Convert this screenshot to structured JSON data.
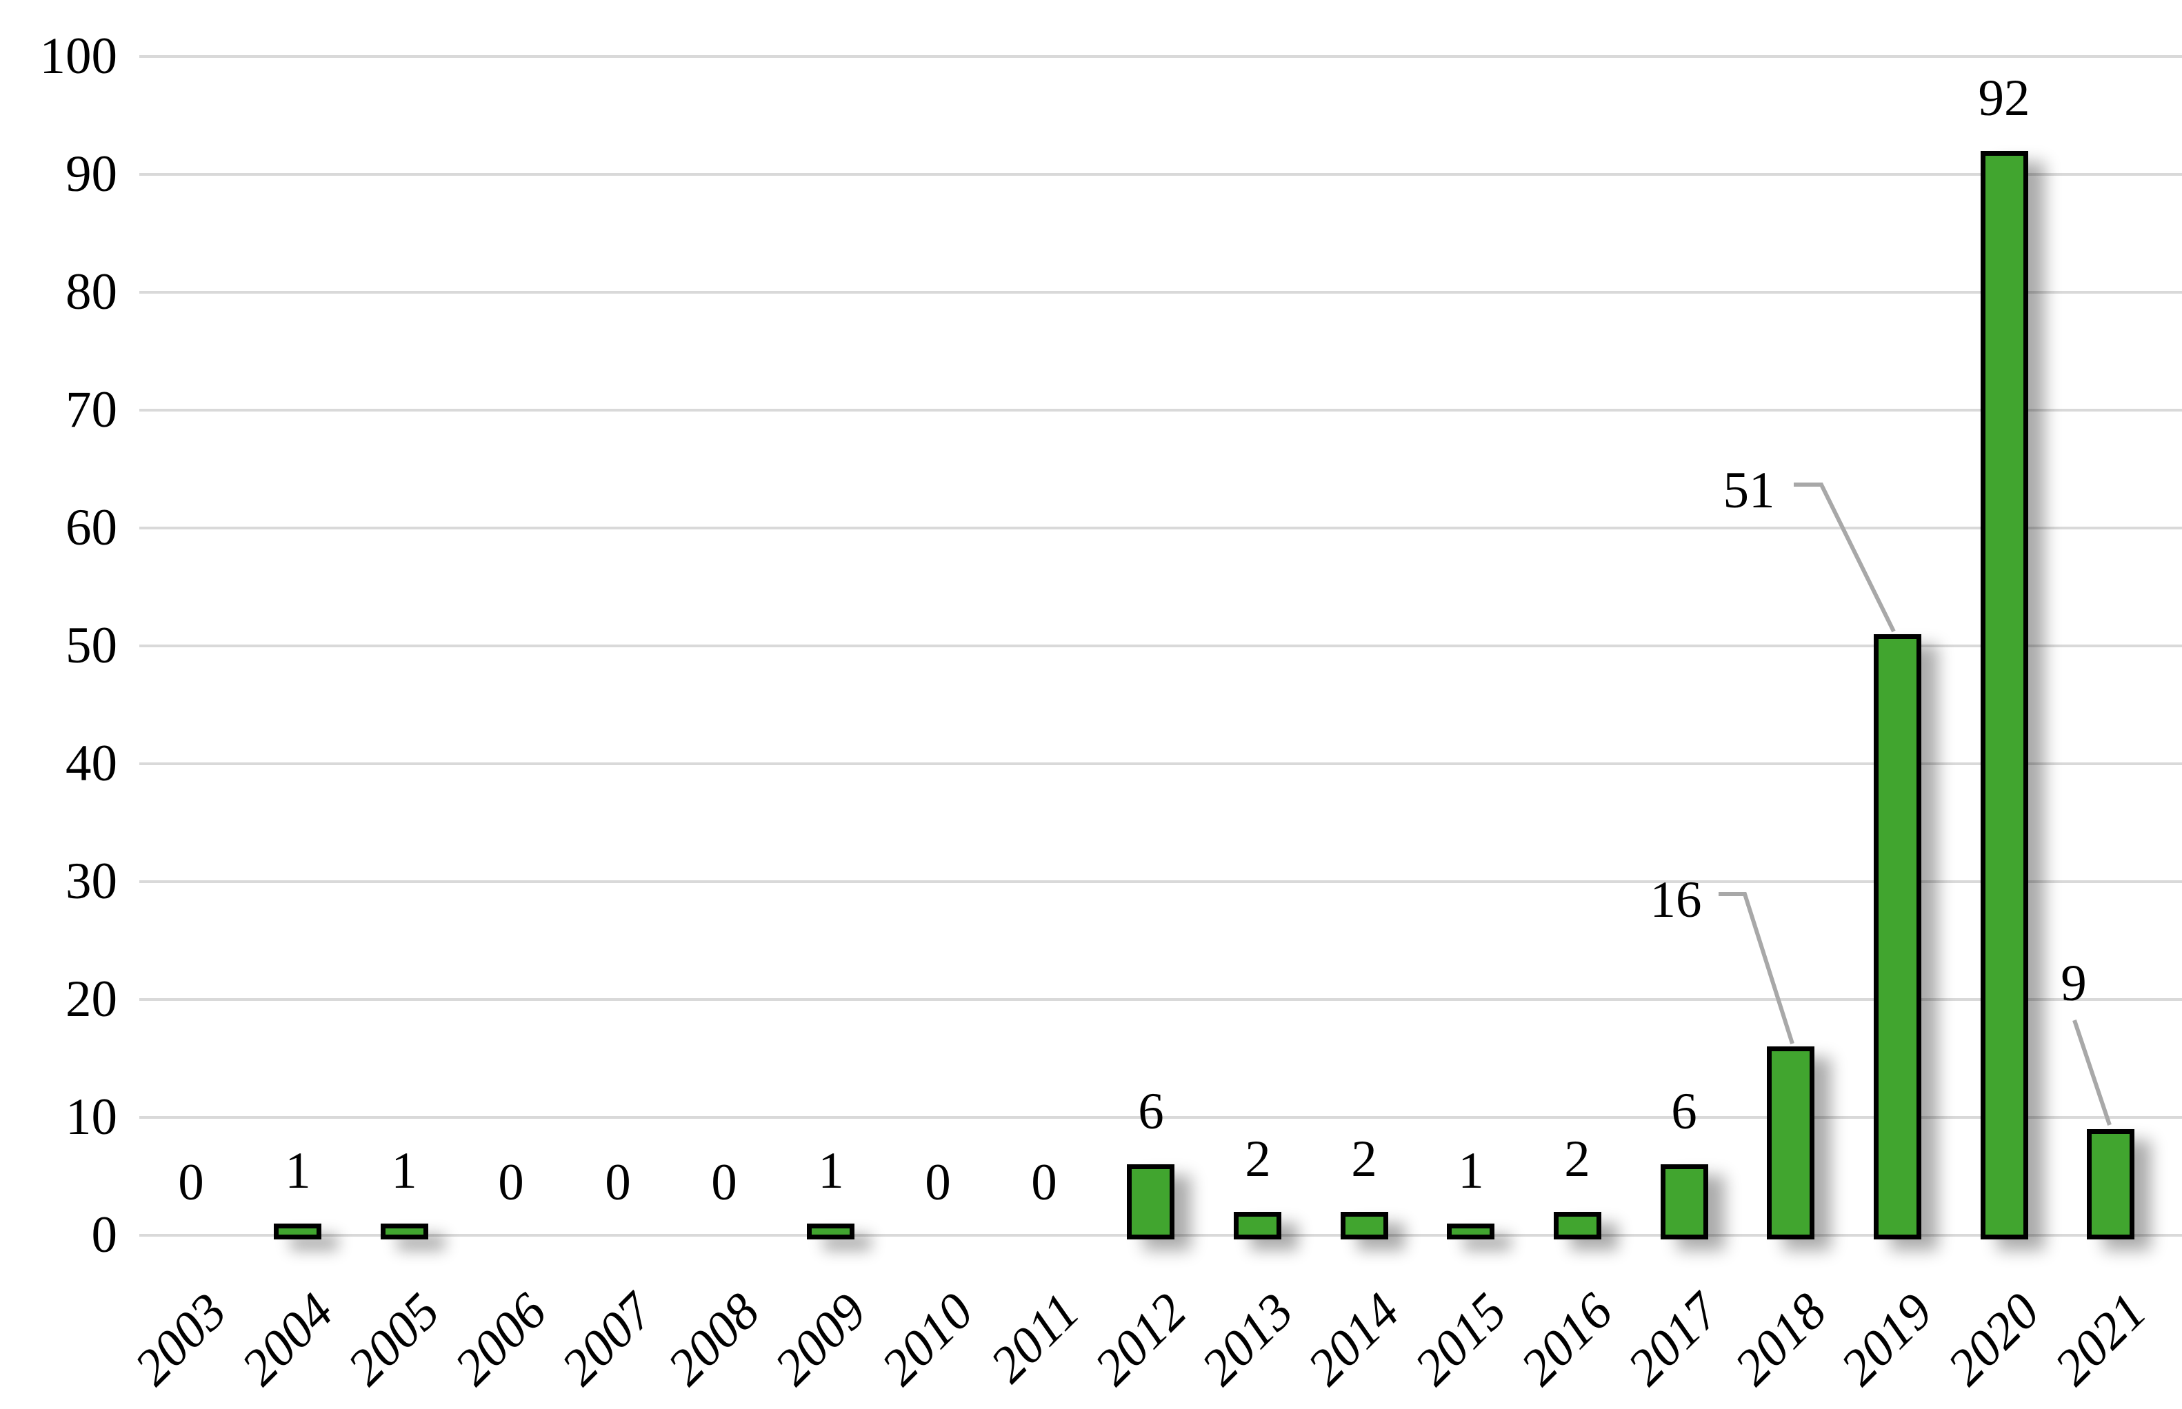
{
  "chart_data": {
    "type": "bar",
    "categories": [
      "2003",
      "2004",
      "2005",
      "2006",
      "2007",
      "2008",
      "2009",
      "2010",
      "2011",
      "2012",
      "2013",
      "2014",
      "2015",
      "2016",
      "2017",
      "2018",
      "2019",
      "2020",
      "2021"
    ],
    "values": [
      0,
      1,
      1,
      0,
      0,
      0,
      1,
      0,
      0,
      6,
      2,
      2,
      1,
      2,
      6,
      16,
      51,
      92,
      9
    ],
    "data_labels": [
      "0",
      "1",
      "1",
      "0",
      "0",
      "0",
      "1",
      "0",
      "0",
      "6",
      "2",
      "2",
      "1",
      "2",
      "6",
      "16",
      "51",
      "92",
      "9"
    ],
    "title": "",
    "xlabel": "",
    "ylabel": "",
    "ylim": [
      0,
      100
    ],
    "ytick_step": 10,
    "ytick_labels": [
      "0",
      "10",
      "20",
      "30",
      "40",
      "50",
      "60",
      "70",
      "80",
      "90",
      "100"
    ],
    "grid": "horizontal",
    "legend": "none",
    "callouts": [
      {
        "category": "2018",
        "label": "16"
      },
      {
        "category": "2019",
        "label": "51"
      },
      {
        "category": "2021",
        "label": "9"
      }
    ],
    "colors": {
      "bar_fill": "#41A52F",
      "bar_border": "#000000",
      "gridline": "#D9D9D9",
      "leader_line": "#A8A8A8",
      "label_text": "#000000",
      "background": "#FFFFFF"
    }
  }
}
